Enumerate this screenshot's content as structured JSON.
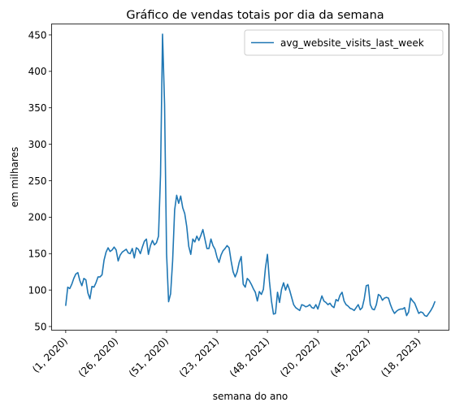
{
  "chart_data": {
    "type": "line",
    "title": "Gráfico de vendas totais por dia da semana",
    "xlabel": "semana do ano",
    "ylabel": "em milhares",
    "ylim": [
      45,
      465
    ],
    "yticks": [
      50,
      100,
      150,
      200,
      250,
      300,
      350,
      400,
      450
    ],
    "xlim": [
      -7,
      190
    ],
    "xticks": [
      {
        "index": 0,
        "label": "(1, 2020)"
      },
      {
        "index": 25,
        "label": "(26, 2020)"
      },
      {
        "index": 50,
        "label": "(51, 2020)"
      },
      {
        "index": 75,
        "label": "(23, 2021)"
      },
      {
        "index": 100,
        "label": "(48, 2021)"
      },
      {
        "index": 125,
        "label": "(20, 2022)"
      },
      {
        "index": 150,
        "label": "(45, 2022)"
      },
      {
        "index": 175,
        "label": "(18, 2023)"
      }
    ],
    "legend_position": "top-right",
    "grid": false,
    "series": [
      {
        "name": "avg_website_visits_last_week",
        "color": "#1f77b4",
        "values": [
          79,
          104,
          102,
          108,
          116,
          122,
          124,
          113,
          106,
          116,
          114,
          96,
          88,
          105,
          104,
          110,
          118,
          118,
          121,
          141,
          152,
          158,
          153,
          155,
          159,
          155,
          140,
          148,
          152,
          154,
          156,
          151,
          150,
          157,
          144,
          158,
          156,
          150,
          159,
          167,
          170,
          149,
          161,
          168,
          162,
          165,
          174,
          258,
          451,
          355,
          150,
          84,
          95,
          140,
          210,
          230,
          219,
          229,
          213,
          205,
          187,
          160,
          149,
          170,
          166,
          174,
          168,
          175,
          183,
          170,
          157,
          157,
          170,
          161,
          156,
          145,
          138,
          148,
          154,
          157,
          161,
          158,
          140,
          125,
          118,
          125,
          138,
          146,
          108,
          104,
          116,
          113,
          108,
          102,
          97,
          85,
          98,
          94,
          101,
          130,
          149,
          112,
          85,
          67,
          68,
          97,
          83,
          101,
          110,
          100,
          108,
          100,
          90,
          80,
          76,
          74,
          72,
          80,
          79,
          77,
          78,
          80,
          76,
          75,
          80,
          74,
          83,
          92,
          85,
          83,
          80,
          82,
          78,
          76,
          87,
          85,
          93,
          97,
          85,
          80,
          78,
          75,
          74,
          72,
          76,
          80,
          73,
          76,
          88,
          106,
          107,
          80,
          74,
          73,
          80,
          94,
          92,
          86,
          89,
          90,
          89,
          80,
          73,
          68,
          71,
          73,
          74,
          74,
          76,
          65,
          70,
          89,
          85,
          82,
          75,
          68,
          70,
          69,
          65,
          64,
          68,
          72,
          77,
          84
        ]
      }
    ]
  }
}
